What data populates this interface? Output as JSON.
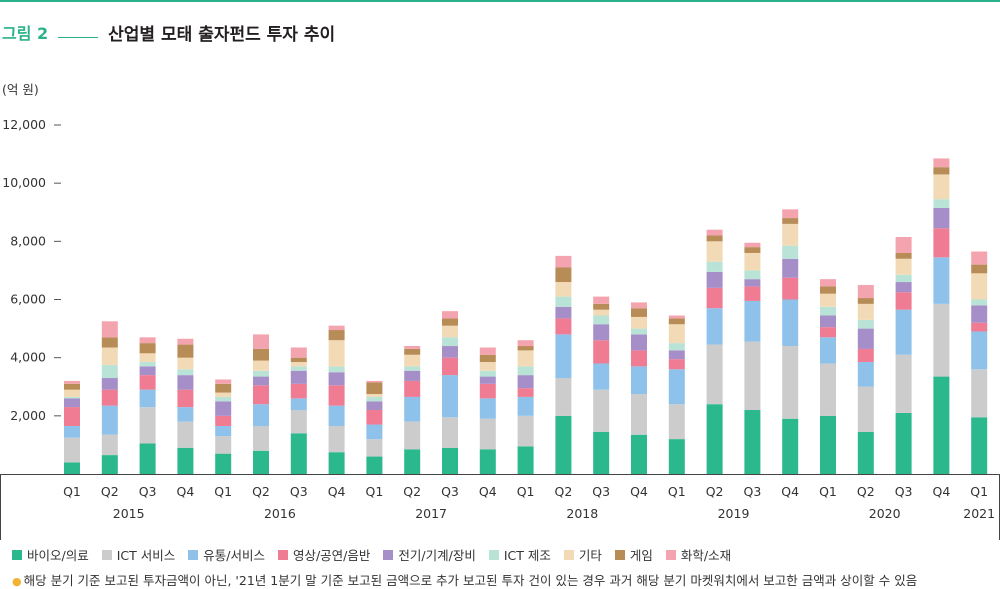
{
  "header": {
    "figure_label": "그림 2",
    "title": "산업별 모태 출자펀드 투자 추이"
  },
  "unit_label": "(억 원)",
  "footnote": {
    "text": "해당 분기 기준 보고된 투자금액이 아닌, '21년 1분기 말 기준 보고된 금액으로 추가 보고된 투자 건이 있는 경우 과거 해당 분기 마켓워치에서 보고한 금액과 상이할 수 있음"
  },
  "chart_data": {
    "type": "bar",
    "stacked": true,
    "title": "산업별 모태 출자펀드 투자 추이",
    "ylabel": "(억 원)",
    "ylim": [
      0,
      12000
    ],
    "yticks": [
      2000,
      4000,
      6000,
      8000,
      10000,
      12000
    ],
    "ytick_labels": [
      "2,000",
      "4,000",
      "6,000",
      "8,000",
      "10,000",
      "12,000"
    ],
    "categories": [
      "Q1",
      "Q2",
      "Q3",
      "Q4",
      "Q1",
      "Q2",
      "Q3",
      "Q4",
      "Q1",
      "Q2",
      "Q3",
      "Q4",
      "Q1",
      "Q2",
      "Q3",
      "Q4",
      "Q1",
      "Q2",
      "Q3",
      "Q4",
      "Q1",
      "Q2",
      "Q3",
      "Q4",
      "Q1"
    ],
    "year_groups": [
      {
        "label": "2015",
        "start": 0,
        "end": 3
      },
      {
        "label": "2016",
        "start": 4,
        "end": 7
      },
      {
        "label": "2017",
        "start": 8,
        "end": 11
      },
      {
        "label": "2018",
        "start": 12,
        "end": 15
      },
      {
        "label": "2019",
        "start": 16,
        "end": 19
      },
      {
        "label": "2020",
        "start": 20,
        "end": 23
      },
      {
        "label": "2021",
        "start": 24,
        "end": 24
      }
    ],
    "legend_position": "bottom",
    "series": [
      {
        "name": "바이오/의료",
        "color": "#2bb88d",
        "values": [
          400,
          650,
          1050,
          900,
          700,
          800,
          1400,
          750,
          600,
          850,
          900,
          850,
          950,
          2000,
          1450,
          1350,
          1200,
          2400,
          2200,
          1900,
          2000,
          1450,
          2100,
          3350,
          1950
        ]
      },
      {
        "name": "ICT 서비스",
        "color": "#cccccc",
        "values": [
          850,
          700,
          1250,
          900,
          600,
          850,
          800,
          900,
          600,
          950,
          1050,
          1050,
          1050,
          1300,
          1450,
          1400,
          1200,
          2050,
          2350,
          2500,
          1800,
          1550,
          2000,
          2500,
          1650
        ]
      },
      {
        "name": "유통/서비스",
        "color": "#8ec2eb",
        "values": [
          400,
          1000,
          600,
          500,
          350,
          750,
          400,
          700,
          500,
          850,
          1450,
          700,
          650,
          1500,
          900,
          950,
          1200,
          1250,
          1400,
          1600,
          900,
          850,
          1550,
          1600,
          1300
        ]
      },
      {
        "name": "영상/공연/음반",
        "color": "#ef7c92",
        "values": [
          650,
          550,
          500,
          600,
          350,
          650,
          500,
          700,
          500,
          550,
          600,
          500,
          300,
          550,
          800,
          550,
          350,
          700,
          500,
          750,
          350,
          450,
          600,
          1000,
          300
        ]
      },
      {
        "name": "전기/기계/장비",
        "color": "#a68fc9",
        "values": [
          300,
          400,
          300,
          500,
          500,
          300,
          450,
          450,
          300,
          350,
          400,
          250,
          450,
          400,
          550,
          550,
          300,
          550,
          250,
          650,
          400,
          700,
          350,
          700,
          600
        ]
      },
      {
        "name": "ICT 제조",
        "color": "#b9e3d6",
        "values": [
          50,
          450,
          150,
          200,
          150,
          200,
          150,
          200,
          150,
          150,
          300,
          200,
          300,
          350,
          300,
          200,
          250,
          350,
          300,
          450,
          300,
          300,
          250,
          300,
          200
        ]
      },
      {
        "name": "기타",
        "color": "#f3dab6",
        "values": [
          250,
          600,
          300,
          400,
          150,
          350,
          150,
          900,
          100,
          400,
          400,
          300,
          550,
          500,
          200,
          400,
          650,
          700,
          600,
          750,
          450,
          550,
          550,
          850,
          900
        ]
      },
      {
        "name": "게임",
        "color": "#b88c56",
        "values": [
          200,
          350,
          350,
          450,
          300,
          400,
          150,
          350,
          400,
          200,
          250,
          250,
          150,
          500,
          200,
          300,
          200,
          200,
          200,
          200,
          250,
          200,
          200,
          250,
          300
        ]
      },
      {
        "name": "화학/소재",
        "color": "#f4a4ae",
        "values": [
          100,
          550,
          200,
          200,
          150,
          500,
          350,
          150,
          50,
          100,
          250,
          250,
          200,
          400,
          250,
          200,
          100,
          200,
          150,
          300,
          250,
          450,
          550,
          300,
          450
        ]
      }
    ]
  }
}
